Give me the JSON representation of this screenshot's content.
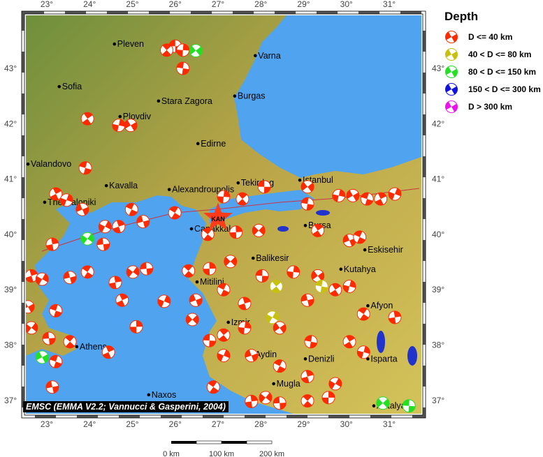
{
  "map": {
    "lon_range": [
      22.5,
      31.75
    ],
    "lat_range": [
      36.75,
      44.0
    ],
    "lon_ticks": [
      "23°",
      "24°",
      "25°",
      "26°",
      "27°",
      "28°",
      "29°",
      "30°",
      "31°"
    ],
    "lat_ticks": [
      "43°",
      "42°",
      "41°",
      "40°",
      "39°",
      "38°",
      "37°"
    ],
    "colors": {
      "sea": "#4fa3ef",
      "land": "#b9a54a",
      "lowland": "#5f8a3a",
      "lake": "#2233cc",
      "fault": "#cc3344"
    },
    "credit": "EMSC (EMMA V2.2; Vannucci & Gasperini, 2004)",
    "epicenter": {
      "label": "KAN",
      "lon": 27.0,
      "lat": 40.3,
      "color": "#ff3b1a"
    },
    "cities": [
      {
        "name": "Pleven",
        "lon": 24.58,
        "lat": 43.44
      },
      {
        "name": "Varna",
        "lon": 27.87,
        "lat": 43.23
      },
      {
        "name": "Sofia",
        "lon": 23.29,
        "lat": 42.67
      },
      {
        "name": "Stara Zagora",
        "lon": 25.61,
        "lat": 42.41
      },
      {
        "name": "Burgas",
        "lon": 27.39,
        "lat": 42.5
      },
      {
        "name": "Plovdiv",
        "lon": 24.71,
        "lat": 42.13
      },
      {
        "name": "Edirne",
        "lon": 26.53,
        "lat": 41.64
      },
      {
        "name": "Valandovo",
        "lon": 22.56,
        "lat": 41.27
      },
      {
        "name": "Kavalla",
        "lon": 24.39,
        "lat": 40.88
      },
      {
        "name": "Alexandroupolis",
        "lon": 25.86,
        "lat": 40.81
      },
      {
        "name": "Tekirdag",
        "lon": 27.47,
        "lat": 40.93
      },
      {
        "name": "Istanbul",
        "lon": 28.91,
        "lat": 40.98
      },
      {
        "name": "Thessaloniki",
        "lon": 22.95,
        "lat": 40.58
      },
      {
        "name": "Canakkale",
        "lon": 26.38,
        "lat": 40.1
      },
      {
        "name": "Bursa",
        "lon": 29.04,
        "lat": 40.16
      },
      {
        "name": "Eskisehir",
        "lon": 30.43,
        "lat": 39.72
      },
      {
        "name": "Balikesir",
        "lon": 27.82,
        "lat": 39.57
      },
      {
        "name": "Kutahya",
        "lon": 29.87,
        "lat": 39.37
      },
      {
        "name": "Mitilini",
        "lon": 26.51,
        "lat": 39.14
      },
      {
        "name": "Izmir",
        "lon": 27.24,
        "lat": 38.41
      },
      {
        "name": "Afyon",
        "lon": 30.5,
        "lat": 38.71
      },
      {
        "name": "Athens",
        "lon": 23.7,
        "lat": 37.97
      },
      {
        "name": "Aydin",
        "lon": 27.8,
        "lat": 37.83
      },
      {
        "name": "Denizli",
        "lon": 29.04,
        "lat": 37.75
      },
      {
        "name": "Isparta",
        "lon": 30.5,
        "lat": 37.75
      },
      {
        "name": "Mugla",
        "lon": 28.3,
        "lat": 37.3
      },
      {
        "name": "Naxos",
        "lon": 25.38,
        "lat": 37.1
      },
      {
        "name": "Antalya",
        "lon": 30.64,
        "lat": 36.9
      }
    ],
    "events": [
      [
        26.0,
        43.4,
        "a"
      ],
      [
        25.8,
        43.33,
        "a"
      ],
      [
        26.18,
        43.33,
        "a"
      ],
      [
        26.48,
        43.32,
        "c"
      ],
      [
        26.18,
        43.0,
        "a"
      ],
      [
        23.95,
        42.09,
        "a"
      ],
      [
        24.68,
        41.97,
        "a"
      ],
      [
        24.96,
        41.97,
        "a"
      ],
      [
        23.9,
        41.2,
        "a"
      ],
      [
        23.21,
        40.73,
        "a"
      ],
      [
        23.46,
        40.62,
        "a"
      ],
      [
        23.83,
        40.45,
        "a"
      ],
      [
        24.98,
        40.45,
        "a"
      ],
      [
        24.68,
        40.14,
        "a"
      ],
      [
        24.36,
        40.14,
        "a"
      ],
      [
        25.25,
        40.23,
        "a"
      ],
      [
        25.99,
        40.39,
        "a"
      ],
      [
        23.13,
        39.82,
        "a"
      ],
      [
        23.95,
        39.92,
        "c"
      ],
      [
        24.32,
        39.82,
        "a"
      ],
      [
        26.76,
        40.0,
        "a"
      ],
      [
        27.42,
        40.04,
        "a"
      ],
      [
        27.95,
        40.07,
        "a"
      ],
      [
        28.08,
        40.86,
        "a"
      ],
      [
        27.57,
        40.64,
        "a"
      ],
      [
        27.13,
        40.68,
        "a"
      ],
      [
        29.09,
        40.86,
        "a"
      ],
      [
        29.09,
        40.55,
        "a"
      ],
      [
        29.33,
        40.07,
        "a"
      ],
      [
        29.82,
        40.7,
        "a"
      ],
      [
        30.15,
        40.7,
        "a"
      ],
      [
        30.48,
        40.64,
        "a"
      ],
      [
        30.8,
        40.64,
        "a"
      ],
      [
        31.13,
        40.73,
        "a"
      ],
      [
        30.07,
        39.89,
        "a"
      ],
      [
        30.31,
        39.95,
        "a"
      ],
      [
        22.64,
        39.25,
        "a"
      ],
      [
        22.89,
        39.19,
        "a"
      ],
      [
        23.54,
        39.22,
        "a"
      ],
      [
        23.95,
        39.32,
        "a"
      ],
      [
        24.6,
        39.13,
        "a"
      ],
      [
        25.01,
        39.32,
        "a"
      ],
      [
        25.33,
        39.38,
        "a"
      ],
      [
        26.31,
        39.34,
        "a"
      ],
      [
        26.8,
        39.38,
        "a"
      ],
      [
        27.29,
        39.51,
        "a"
      ],
      [
        28.03,
        39.25,
        "a"
      ],
      [
        28.36,
        39.06,
        "b"
      ],
      [
        28.76,
        39.32,
        "a"
      ],
      [
        29.33,
        39.25,
        "a"
      ],
      [
        29.42,
        39.06,
        "b"
      ],
      [
        29.74,
        39.0,
        "a"
      ],
      [
        30.07,
        39.06,
        "a"
      ],
      [
        22.56,
        38.69,
        "a"
      ],
      [
        23.21,
        38.62,
        "a"
      ],
      [
        24.76,
        38.81,
        "a"
      ],
      [
        25.74,
        38.79,
        "a"
      ],
      [
        26.48,
        38.81,
        "a"
      ],
      [
        27.13,
        39.0,
        "a"
      ],
      [
        27.62,
        38.75,
        "a"
      ],
      [
        28.27,
        38.5,
        "b"
      ],
      [
        29.09,
        38.81,
        "a"
      ],
      [
        30.4,
        38.56,
        "a"
      ],
      [
        31.13,
        38.5,
        "a"
      ],
      [
        22.64,
        38.31,
        "a"
      ],
      [
        23.05,
        38.12,
        "a"
      ],
      [
        23.54,
        38.06,
        "a"
      ],
      [
        25.09,
        38.33,
        "a"
      ],
      [
        26.4,
        38.46,
        "a"
      ],
      [
        26.8,
        38.08,
        "a"
      ],
      [
        27.13,
        38.18,
        "a"
      ],
      [
        27.62,
        38.31,
        "a"
      ],
      [
        28.44,
        38.31,
        "a"
      ],
      [
        29.17,
        38.06,
        "a"
      ],
      [
        30.07,
        38.06,
        "a"
      ],
      [
        30.4,
        37.87,
        "a"
      ],
      [
        22.89,
        37.78,
        "c"
      ],
      [
        23.21,
        37.7,
        "a"
      ],
      [
        24.44,
        37.87,
        "a"
      ],
      [
        27.13,
        37.81,
        "a"
      ],
      [
        27.78,
        37.81,
        "a"
      ],
      [
        28.44,
        37.62,
        "a"
      ],
      [
        29.09,
        37.43,
        "a"
      ],
      [
        29.74,
        37.3,
        "a"
      ],
      [
        23.13,
        37.24,
        "a"
      ],
      [
        26.89,
        37.24,
        "a"
      ],
      [
        27.78,
        36.98,
        "a"
      ],
      [
        28.11,
        37.05,
        "a"
      ],
      [
        28.44,
        36.95,
        "a"
      ],
      [
        29.09,
        36.99,
        "a"
      ],
      [
        29.58,
        37.05,
        "a"
      ],
      [
        30.85,
        36.95,
        "c"
      ],
      [
        31.46,
        36.9,
        "c"
      ]
    ]
  },
  "legend": {
    "title": "Depth",
    "items": [
      {
        "key": "a",
        "label": "D <= 40 km",
        "color": "#ff2a00"
      },
      {
        "key": "b",
        "label": "40 < D <= 80 km",
        "color": "#c8c010"
      },
      {
        "key": "c",
        "label": "80 < D <= 150 km",
        "color": "#22e022"
      },
      {
        "key": "d",
        "label": "150 < D <= 300 km",
        "color": "#1010e0"
      },
      {
        "key": "e",
        "label": "D > 300 km",
        "color": "#ee10ee"
      }
    ]
  },
  "scale_bar": {
    "labels": [
      "0 km",
      "100 km",
      "200 km"
    ]
  }
}
